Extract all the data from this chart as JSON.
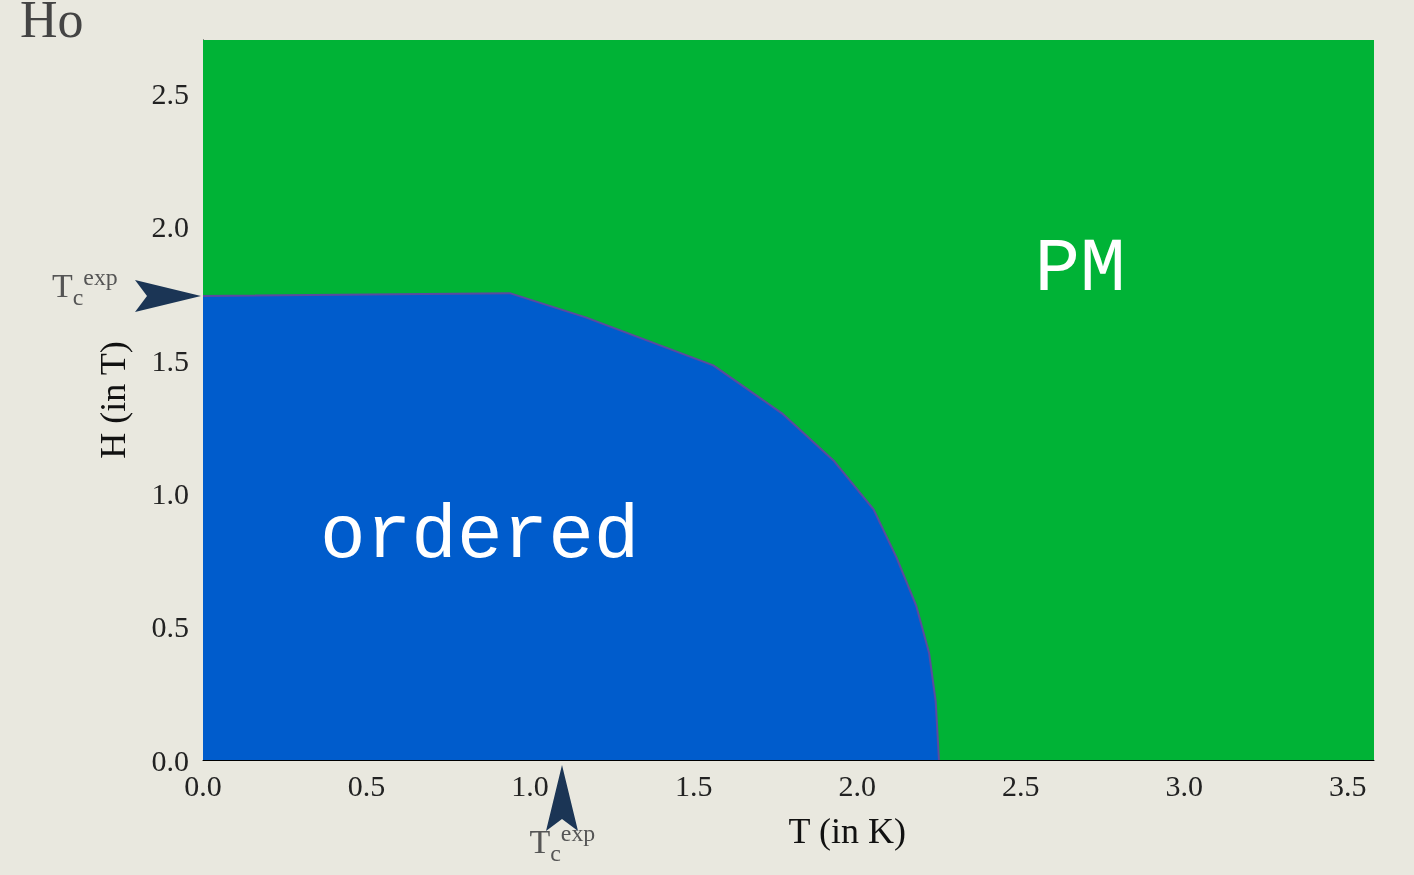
{
  "chart_data": {
    "type": "area",
    "title": "Ho",
    "xlabel": "T (in K)",
    "ylabel": "H (in T)",
    "x": [
      0,
      0.94,
      1.17,
      1.56,
      1.77,
      1.93,
      2.05,
      2.12,
      2.18,
      2.22,
      2.24,
      2.25
    ],
    "series": [
      {
        "color": "#005ccc",
        "values": [
          1.74,
          1.75,
          1.66,
          1.48,
          1.3,
          1.12,
          0.94,
          0.76,
          0.58,
          0.4,
          0.22,
          0
        ]
      }
    ],
    "bands": [
      {
        "axis": "y",
        "from": 0,
        "to": 2.7,
        "color": "#00b336"
      }
    ],
    "xlim": [
      0,
      3.58
    ],
    "xticks": [
      {
        "value": 0,
        "label": "0.0"
      },
      0.5,
      {
        "value": 1,
        "label": "1.0"
      },
      1.5,
      {
        "value": 2,
        "label": "2.0"
      },
      2.5,
      {
        "value": 3,
        "label": "3.0"
      },
      3.5
    ],
    "ylim": [
      0,
      2.7
    ],
    "yticks": [
      {
        "value": 0,
        "label": "0.0"
      },
      0.5,
      {
        "value": 1,
        "label": "1.0"
      },
      1.5,
      {
        "value": 2,
        "label": "2.0"
      },
      2.5
    ],
    "annotations": [
      "ordered",
      "PM",
      "T$_{c}$$^{exp}$",
      "T$_{c}$$^{exp}$"
    ]
  }
}
